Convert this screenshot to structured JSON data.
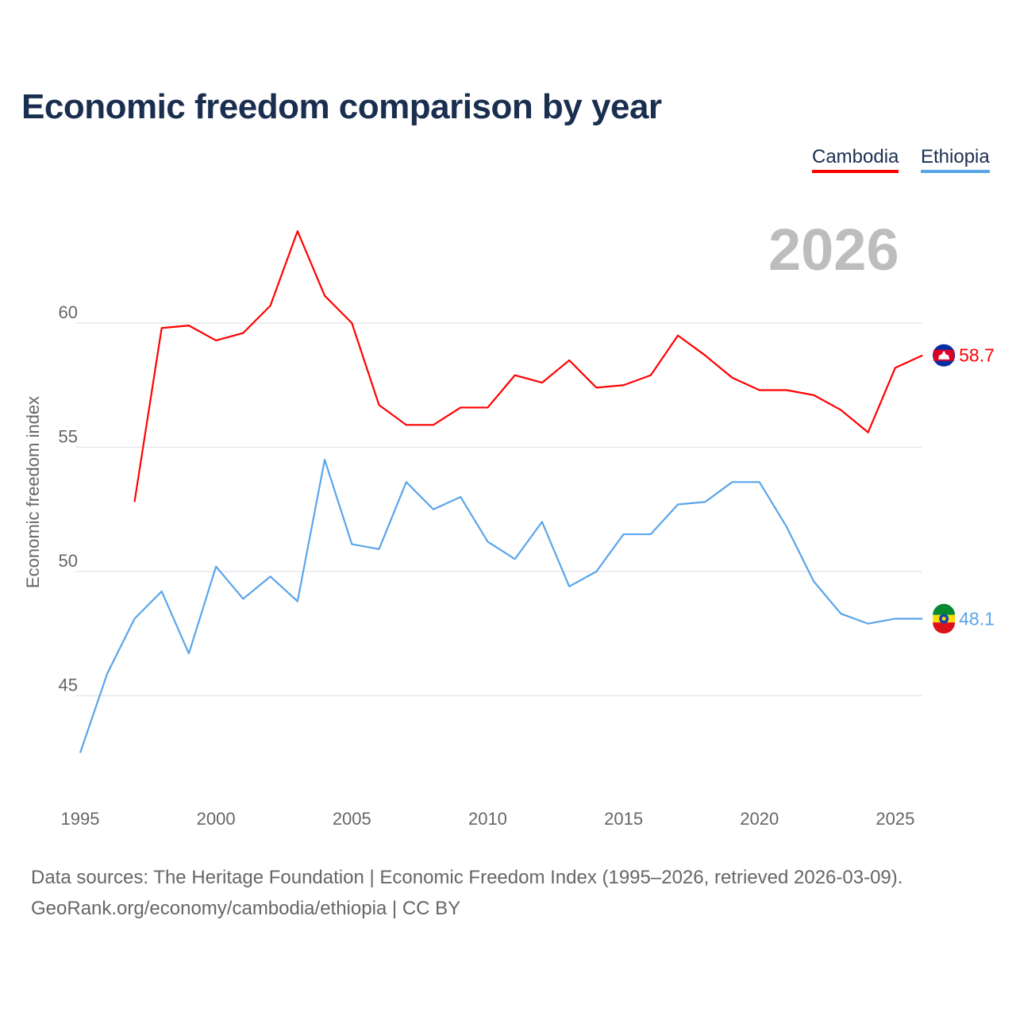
{
  "title": "Economic freedom comparison by year",
  "legend": [
    "Cambodia",
    "Ethiopia"
  ],
  "current_year": "2026",
  "source_line1": "Data sources: The Heritage Foundation | Economic Freedom Index (1995–2026, retrieved 2026-03-09).",
  "source_line2": "GeoRank.org/economy/cambodia/ethiopia | CC BY",
  "chart_data": {
    "type": "line",
    "title": "Economic freedom comparison by year",
    "xlabel": "",
    "ylabel": "Economic freedom index",
    "xlim": [
      1995,
      2026
    ],
    "ylim": [
      41.5,
      65
    ],
    "xticks": [
      1995,
      2000,
      2005,
      2010,
      2015,
      2020,
      2025
    ],
    "yticks": [
      45,
      50,
      55,
      60
    ],
    "grid": true,
    "legend_placement": "top-right",
    "series": [
      {
        "name": "Cambodia",
        "color": "#ff0000",
        "end_label": "58.7",
        "flag": "cambodia-flag",
        "x": [
          1997,
          1998,
          1999,
          2000,
          2001,
          2002,
          2003,
          2004,
          2005,
          2006,
          2007,
          2008,
          2009,
          2010,
          2011,
          2012,
          2013,
          2014,
          2015,
          2016,
          2017,
          2018,
          2019,
          2020,
          2021,
          2022,
          2023,
          2024,
          2025,
          2026
        ],
        "values": [
          52.8,
          59.8,
          59.9,
          59.3,
          59.6,
          60.7,
          63.7,
          61.1,
          60.0,
          56.7,
          55.9,
          55.9,
          56.6,
          56.6,
          57.9,
          57.6,
          58.5,
          57.4,
          57.5,
          57.9,
          59.5,
          58.7,
          57.8,
          57.3,
          57.3,
          57.1,
          56.5,
          55.6,
          58.2,
          58.7
        ]
      },
      {
        "name": "Ethiopia",
        "color": "#5aa5ea",
        "end_label": "48.1",
        "flag": "ethiopia-flag",
        "x": [
          1995,
          1996,
          1997,
          1998,
          1999,
          2000,
          2001,
          2002,
          2003,
          2004,
          2005,
          2006,
          2007,
          2008,
          2009,
          2010,
          2011,
          2012,
          2013,
          2014,
          2015,
          2016,
          2017,
          2018,
          2019,
          2020,
          2021,
          2022,
          2023,
          2024,
          2025,
          2026
        ],
        "values": [
          42.7,
          45.9,
          48.1,
          49.2,
          46.7,
          50.2,
          48.9,
          49.8,
          48.8,
          54.5,
          51.1,
          50.9,
          53.6,
          52.5,
          53.0,
          51.2,
          50.5,
          52.0,
          49.4,
          50.0,
          51.5,
          51.5,
          52.7,
          52.8,
          53.6,
          53.6,
          51.8,
          49.6,
          48.3,
          47.9,
          48.1,
          48.1
        ]
      }
    ]
  }
}
